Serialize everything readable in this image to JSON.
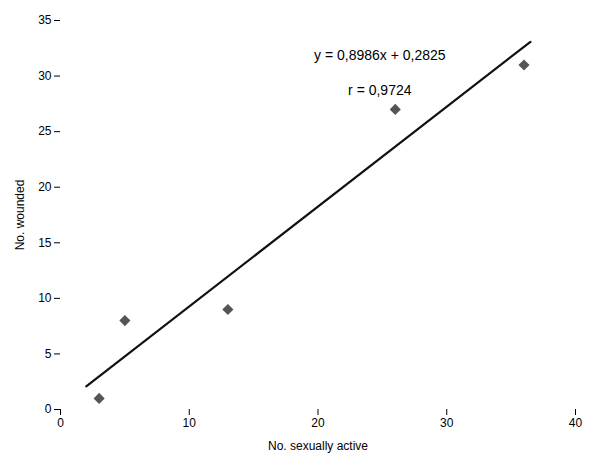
{
  "chart_data": {
    "type": "scatter",
    "xlabel": "No. sexually active",
    "ylabel": "No. wounded",
    "xlim": [
      0,
      40
    ],
    "ylim": [
      0,
      35
    ],
    "xticks": [
      0,
      10,
      20,
      30,
      40
    ],
    "yticks": [
      0,
      5,
      10,
      15,
      20,
      25,
      30,
      35
    ],
    "grid": false,
    "annotations": [
      "y = 0,8986x + 0,2825",
      "r = 0,9724"
    ],
    "series": [
      {
        "type": "line",
        "color": "#111111",
        "x": [
          2.0,
          36.5
        ],
        "values": [
          2.0797,
          33.0814
        ]
      },
      {
        "type": "scatter",
        "marker": "diamond",
        "color": "#555555",
        "x": [
          3,
          5,
          13,
          26,
          36
        ],
        "values": [
          1,
          8,
          9,
          27,
          31
        ]
      }
    ]
  }
}
